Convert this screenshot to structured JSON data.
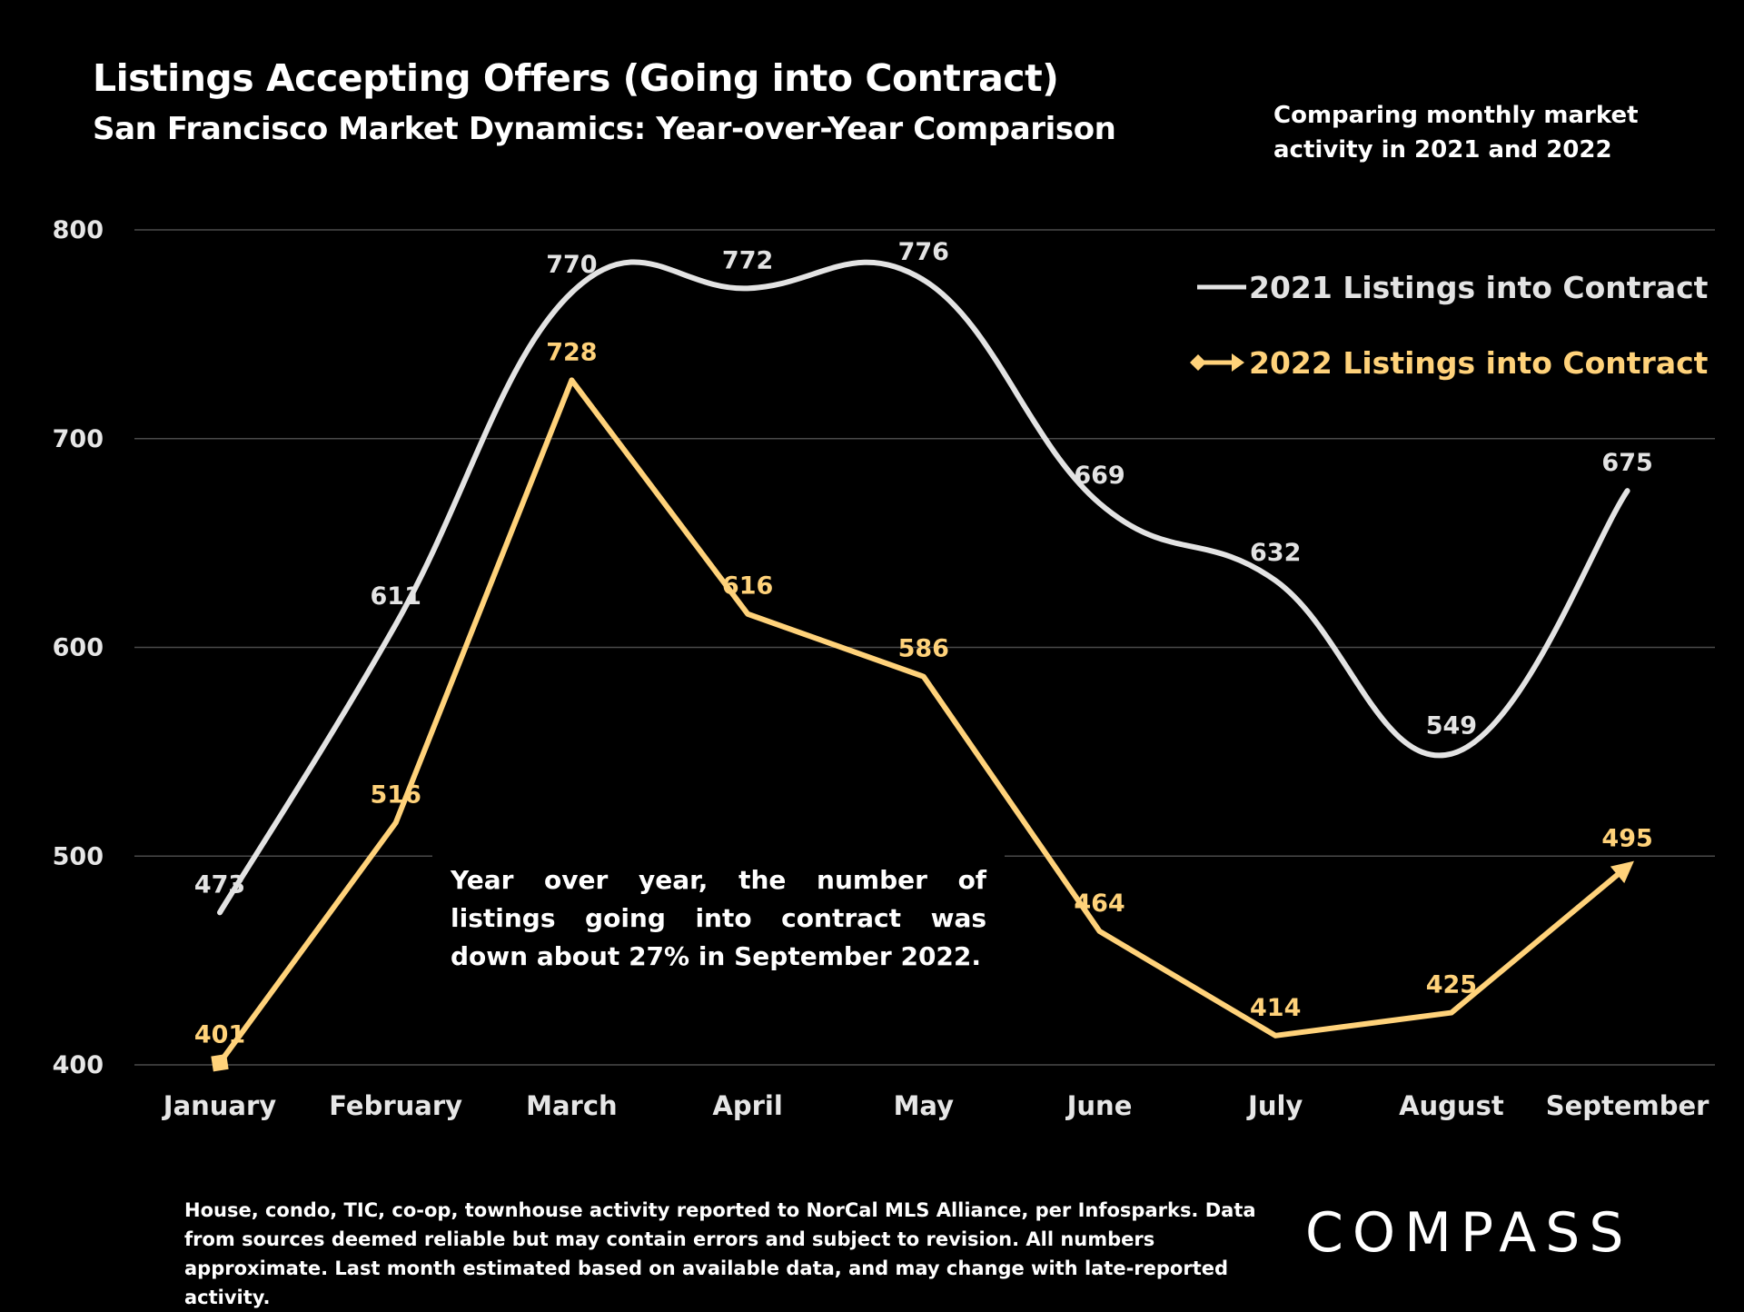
{
  "header": {
    "title": "Listings Accepting Offers (Going into Contract)",
    "subtitle": "San Francisco Market Dynamics: Year-over-Year Comparison",
    "note": "Comparing monthly market activity in 2021 and 2022"
  },
  "callout": "Year over year, the number of listings going into contract was down about 27% in September 2022.",
  "footnote": "House, condo, TIC, co-op, townhouse activity reported to NorCal MLS Alliance, per Infosparks. Data from sources deemed reliable but may contain errors and subject to revision. All numbers approximate. Last month estimated based on available data, and may change with late-reported activity.",
  "logo": "COMPASS",
  "colors": {
    "background": "#000000",
    "series_2021": "#e3e3e3",
    "series_2022": "#ffd27a",
    "gridline": "#4a4a4a"
  },
  "chart_data": {
    "type": "line",
    "title": "Listings Accepting Offers (Going into Contract)",
    "categories": [
      "January",
      "February",
      "March",
      "April",
      "May",
      "June",
      "July",
      "August",
      "September"
    ],
    "ylim": [
      400,
      800
    ],
    "yticks": [
      400,
      500,
      600,
      700,
      800
    ],
    "grid": true,
    "legend_position": "top-right",
    "series": [
      {
        "name": "2021 Listings into Contract",
        "values": [
          473,
          611,
          770,
          772,
          776,
          669,
          632,
          549,
          675
        ],
        "labels": [
          "473",
          "611",
          "770",
          "772",
          "776",
          "669",
          "632",
          "549",
          "675"
        ],
        "smooth": true,
        "marker": "none"
      },
      {
        "name": "2022 Listings into Contract",
        "values": [
          401,
          516,
          728,
          616,
          586,
          464,
          414,
          425,
          495
        ],
        "labels": [
          "401",
          "516",
          "728",
          "616",
          "586",
          "464",
          "414",
          "425",
          "495"
        ],
        "smooth": false,
        "marker": "diamond-start-arrow-end"
      }
    ]
  }
}
